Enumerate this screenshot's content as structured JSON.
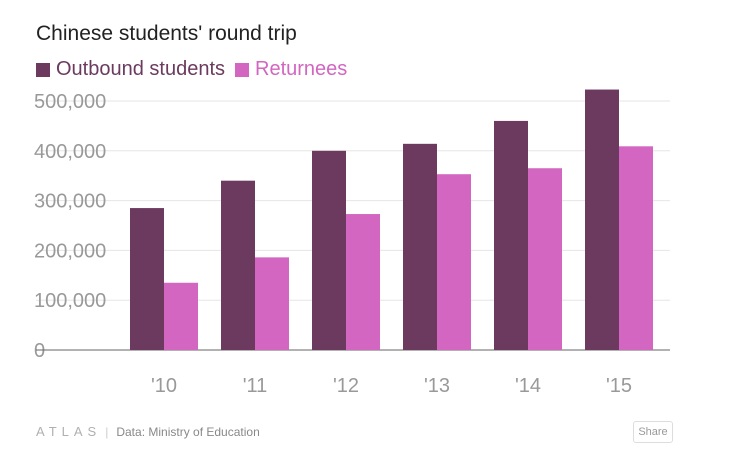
{
  "chart_data": {
    "type": "bar",
    "title": "Chinese students' round trip",
    "categories": [
      "'10",
      "'11",
      "'12",
      "'13",
      "'14",
      "'15"
    ],
    "series": [
      {
        "name": "Outbound students",
        "color": "#6b3a5e",
        "values": [
          285000,
          340000,
          400000,
          414000,
          460000,
          523000
        ]
      },
      {
        "name": "Returnees",
        "color": "#d266c0",
        "values": [
          135000,
          186000,
          273000,
          353000,
          365000,
          409000
        ]
      }
    ],
    "y_ticks": [
      "0",
      "100,000",
      "200,000",
      "300,000",
      "400,000",
      "500,000"
    ],
    "ylim": [
      0,
      500000
    ],
    "grid": true,
    "legend_position": "top-left",
    "xlabel": "",
    "ylabel": ""
  },
  "footer": {
    "logo": "ATLAS",
    "separator": "|",
    "source": "Data: Ministry of Education",
    "share_label": "Share"
  }
}
